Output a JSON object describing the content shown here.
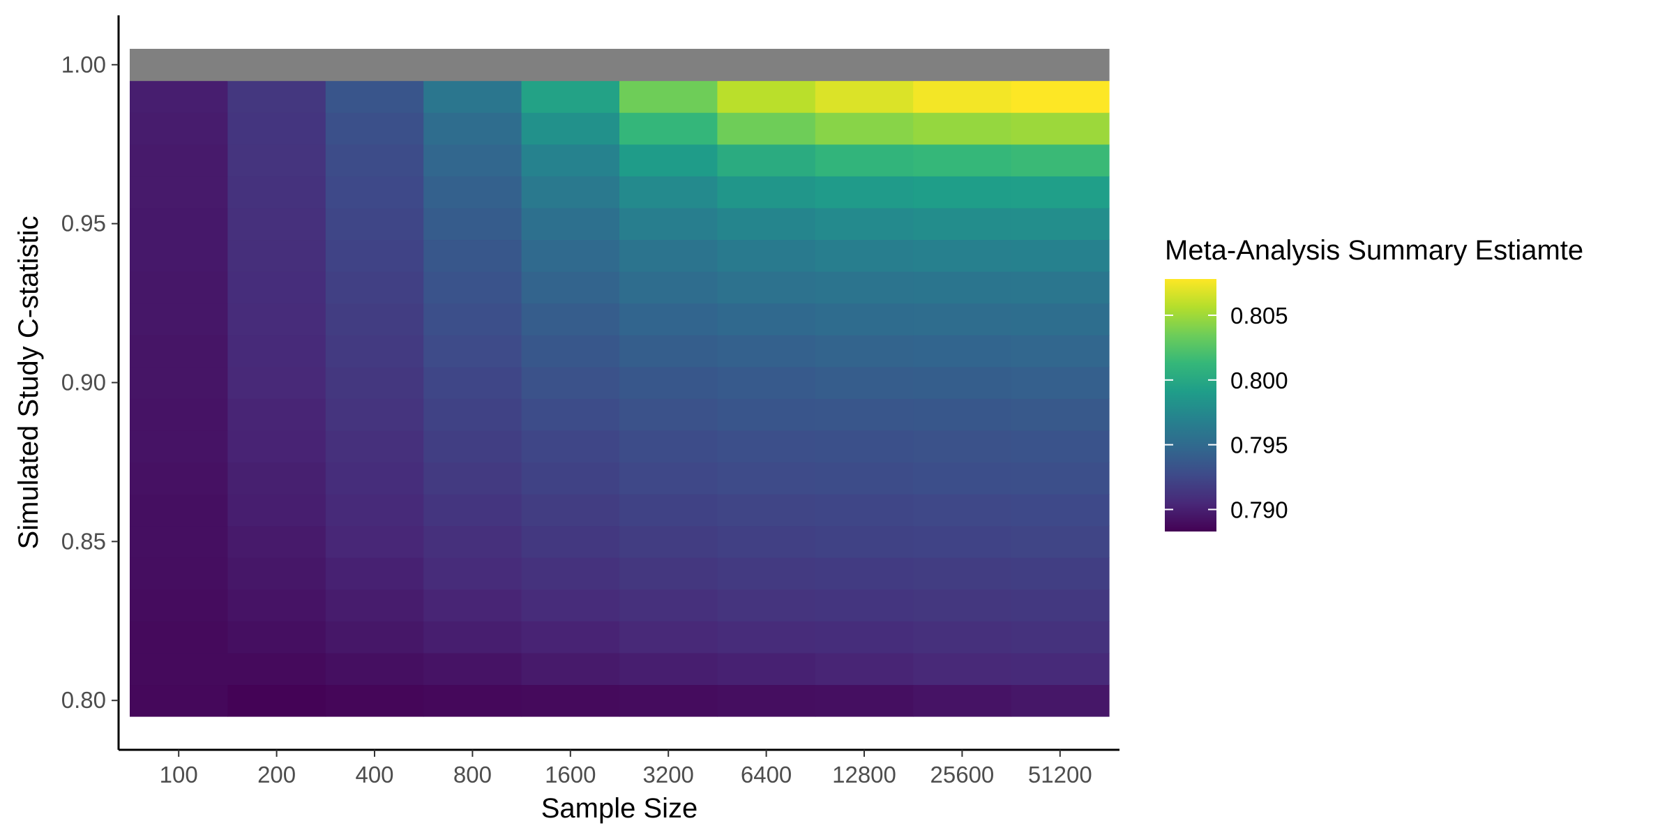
{
  "chart_data": {
    "type": "heatmap",
    "title": "",
    "xlabel": "Sample Size",
    "ylabel": "Simulated Study C-statistic",
    "x_categories": [
      "100",
      "200",
      "400",
      "800",
      "1600",
      "3200",
      "6400",
      "12800",
      "25600",
      "51200"
    ],
    "y_values": [
      0.8,
      0.81,
      0.82,
      0.83,
      0.84,
      0.85,
      0.86,
      0.87,
      0.88,
      0.89,
      0.9,
      0.91,
      0.92,
      0.93,
      0.94,
      0.95,
      0.96,
      0.97,
      0.98,
      0.99,
      1.0
    ],
    "y_ticks": [
      {
        "value": 0.8,
        "label": "0.80"
      },
      {
        "value": 0.85,
        "label": "0.85"
      },
      {
        "value": 0.9,
        "label": "0.90"
      },
      {
        "value": 0.95,
        "label": "0.95"
      },
      {
        "value": 1.0,
        "label": "1.00"
      }
    ],
    "ylim": [
      0.795,
      1.005
    ],
    "grid": false,
    "na_color": "#808080",
    "legend": {
      "title": "Meta-Analysis Summary Estiamte",
      "placement": "right",
      "min": 0.7883,
      "max": 0.8078,
      "ticks": [
        {
          "value": 0.79,
          "label": "0.790"
        },
        {
          "value": 0.795,
          "label": "0.795"
        },
        {
          "value": 0.8,
          "label": "0.800"
        },
        {
          "value": 0.805,
          "label": "0.805"
        }
      ],
      "palette": [
        "#440154",
        "#482878",
        "#3E4A89",
        "#31688E",
        "#26828E",
        "#1F9E89",
        "#35B779",
        "#6DCD59",
        "#B4DE2C",
        "#FDE725"
      ]
    },
    "values": [
      [
        0.7887,
        0.7884,
        0.7886,
        0.7887,
        0.7888,
        0.7889,
        0.789,
        0.7891,
        0.7893,
        0.7895
      ],
      [
        0.7888,
        0.7888,
        0.7891,
        0.7893,
        0.7897,
        0.7899,
        0.7901,
        0.7903,
        0.7905,
        0.7906
      ],
      [
        0.7888,
        0.7891,
        0.7895,
        0.7899,
        0.7902,
        0.7905,
        0.7907,
        0.7908,
        0.791,
        0.7911
      ],
      [
        0.7889,
        0.7893,
        0.7898,
        0.7903,
        0.7907,
        0.791,
        0.7912,
        0.7913,
        0.7914,
        0.7915
      ],
      [
        0.789,
        0.7895,
        0.7901,
        0.7907,
        0.7911,
        0.7914,
        0.7916,
        0.7917,
        0.7918,
        0.7919
      ],
      [
        0.7891,
        0.7897,
        0.7904,
        0.791,
        0.7915,
        0.7918,
        0.792,
        0.7921,
        0.7922,
        0.7923
      ],
      [
        0.7891,
        0.7899,
        0.7906,
        0.7913,
        0.7918,
        0.7921,
        0.7923,
        0.7924,
        0.7925,
        0.7926
      ],
      [
        0.7892,
        0.79,
        0.7908,
        0.7916,
        0.7921,
        0.7925,
        0.7927,
        0.7928,
        0.7929,
        0.793
      ],
      [
        0.7893,
        0.7902,
        0.791,
        0.7919,
        0.7924,
        0.7928,
        0.793,
        0.7931,
        0.7932,
        0.7933
      ],
      [
        0.7893,
        0.7903,
        0.7912,
        0.7921,
        0.7928,
        0.7932,
        0.7934,
        0.7935,
        0.7936,
        0.7937
      ],
      [
        0.7894,
        0.7905,
        0.7914,
        0.7924,
        0.7932,
        0.7936,
        0.7938,
        0.794,
        0.7941,
        0.7942
      ],
      [
        0.7894,
        0.7906,
        0.7916,
        0.7927,
        0.7936,
        0.7941,
        0.7943,
        0.7945,
        0.7946,
        0.7947
      ],
      [
        0.7895,
        0.7907,
        0.7918,
        0.793,
        0.794,
        0.7946,
        0.7949,
        0.7951,
        0.7952,
        0.7953
      ],
      [
        0.7895,
        0.7908,
        0.792,
        0.7933,
        0.7945,
        0.7952,
        0.7956,
        0.7958,
        0.7959,
        0.796
      ],
      [
        0.7896,
        0.7909,
        0.7922,
        0.7936,
        0.795,
        0.7958,
        0.7963,
        0.7966,
        0.7968,
        0.7969
      ],
      [
        0.7896,
        0.791,
        0.7924,
        0.7939,
        0.7955,
        0.7966,
        0.7972,
        0.7976,
        0.7978,
        0.7979
      ],
      [
        0.7897,
        0.7911,
        0.7926,
        0.7943,
        0.7962,
        0.7976,
        0.7985,
        0.7989,
        0.7991,
        0.7992
      ],
      [
        0.7897,
        0.7912,
        0.7928,
        0.7947,
        0.797,
        0.799,
        0.8003,
        0.801,
        0.8013,
        0.8015
      ],
      [
        0.7898,
        0.7913,
        0.7931,
        0.7952,
        0.7981,
        0.8012,
        0.8035,
        0.8043,
        0.8047,
        0.8049
      ],
      [
        0.7899,
        0.7914,
        0.7934,
        0.796,
        0.7995,
        0.8035,
        0.8058,
        0.8068,
        0.8075,
        0.8078
      ],
      [
        null,
        null,
        null,
        null,
        null,
        null,
        null,
        null,
        null,
        null
      ]
    ]
  }
}
